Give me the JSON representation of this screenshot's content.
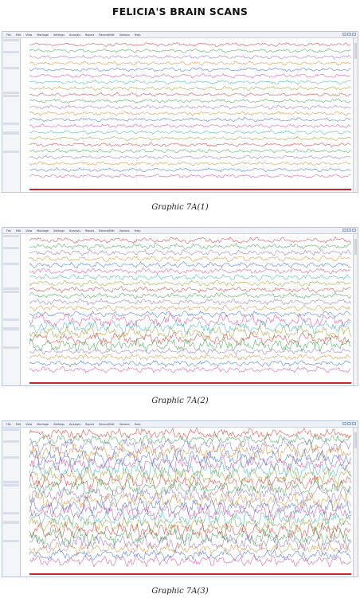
{
  "page": {
    "title": "FELICIA'S BRAIN SCANS"
  },
  "scans": [
    {
      "caption": "Graphic 7A(1)",
      "menu": [
        "File",
        "Edit",
        "View",
        "Montage",
        "Settings",
        "Analysis",
        "Report",
        "Record/Edit",
        "Options",
        "Help"
      ],
      "panel_rows": [
        "",
        "",
        "",
        "",
        "",
        "",
        "",
        "",
        "",
        "",
        "",
        "",
        "",
        "",
        "",
        "",
        "",
        "",
        "",
        "",
        "",
        "",
        "",
        "",
        "",
        "",
        "",
        "",
        "",
        "",
        "",
        "",
        "",
        "",
        "",
        "",
        "",
        ""
      ],
      "time_labels": [
        "",
        "",
        "",
        "",
        "",
        ""
      ],
      "amplitude": 0.55,
      "colors": [
        "#cc3a3a",
        "#3aa04a",
        "#8a6fc0",
        "#d08a30",
        "#3a6fcc",
        "#d0499a",
        "#3ab0b0",
        "#9a9a2a"
      ]
    },
    {
      "caption": "Graphic 7A(2)",
      "menu": [
        "File",
        "Edit",
        "View",
        "Montage",
        "Settings",
        "Analysis",
        "Report",
        "Record/Edit",
        "Options",
        "Help"
      ],
      "panel_rows": [
        "",
        "",
        "",
        "",
        "",
        "",
        "",
        "",
        "",
        "",
        "",
        "",
        "",
        "",
        "",
        "",
        "",
        "",
        "",
        "",
        "",
        "",
        "",
        "",
        "",
        "",
        "",
        "",
        "",
        "",
        "",
        "",
        "",
        "",
        "",
        "",
        "",
        ""
      ],
      "time_labels": [
        "",
        "",
        "",
        "",
        "",
        ""
      ],
      "amplitude": 0.85,
      "colors": [
        "#cc3a3a",
        "#3aa04a",
        "#8a6fc0",
        "#d08a30",
        "#3a6fcc",
        "#d0499a",
        "#3ab0b0",
        "#9a9a2a"
      ]
    },
    {
      "caption": "Graphic 7A(3)",
      "menu": [
        "File",
        "Edit",
        "View",
        "Montage",
        "Settings",
        "Analysis",
        "Report",
        "Record/Edit",
        "Options",
        "Help"
      ],
      "panel_rows": [
        "",
        "",
        "",
        "",
        "",
        "",
        "",
        "",
        "",
        "",
        "",
        "",
        "",
        "",
        "",
        "",
        "",
        "",
        "",
        "",
        "",
        "",
        "",
        "",
        "",
        "",
        "",
        "",
        "",
        "",
        "",
        "",
        "",
        "",
        "",
        "",
        "",
        ""
      ],
      "time_labels": [
        "",
        "",
        "",
        "",
        "",
        ""
      ],
      "amplitude": 1.6,
      "colors": [
        "#cc3a3a",
        "#3aa04a",
        "#8a6fc0",
        "#d08a30",
        "#3a6fcc",
        "#d0499a",
        "#3ab0b0",
        "#9a9a2a"
      ]
    }
  ]
}
